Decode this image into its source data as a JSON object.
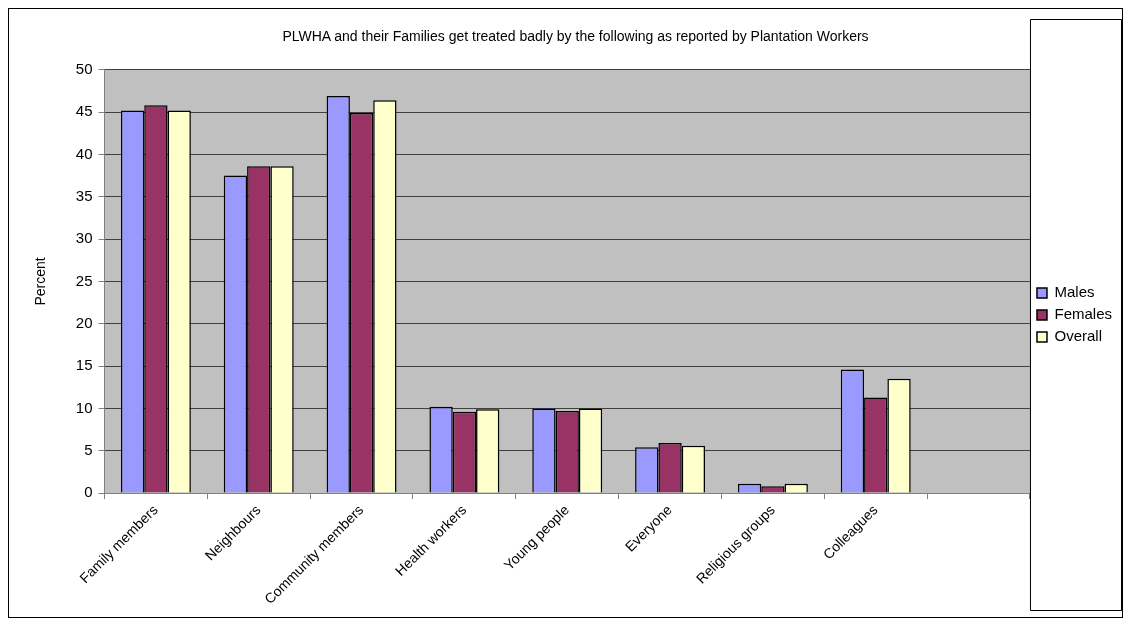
{
  "chart_data": {
    "type": "bar",
    "title": "PLWHA and their Families get treated badly by the following as reported by Plantation Workers",
    "ylabel": "Percent",
    "categories": [
      "Family members",
      "Neighbours",
      "Community members",
      "Health workers",
      "Young people",
      "Everyone",
      "Religious groups",
      "Colleagues",
      null
    ],
    "series": [
      {
        "name": "Males",
        "color": "#9999ff",
        "values": [
          45.2,
          37.5,
          46.9,
          10.2,
          10,
          5.4,
          1.1,
          14.6,
          null
        ]
      },
      {
        "name": "Females",
        "color": "#993366",
        "values": [
          45.8,
          38.6,
          44.9,
          9.6,
          9.7,
          5.9,
          0.8,
          11.3,
          null
        ]
      },
      {
        "name": "Overall",
        "color": "#ffffcc",
        "values": [
          45.2,
          38.6,
          46.4,
          9.9,
          10,
          5.6,
          1.1,
          13.5,
          null
        ]
      }
    ],
    "ylim": [
      0,
      50
    ],
    "yticks": [
      0,
      5,
      10,
      15,
      20,
      25,
      30,
      35,
      40,
      45,
      50
    ],
    "grid": "y",
    "legend": "right"
  }
}
